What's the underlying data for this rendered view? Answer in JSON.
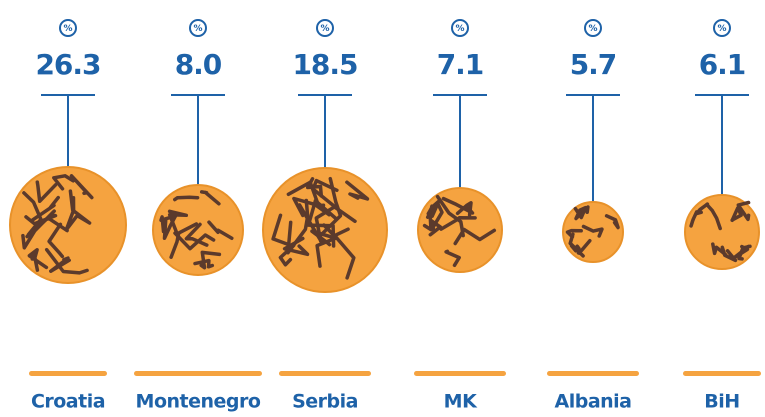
{
  "chart_data": {
    "type": "pictogram",
    "unit": "%",
    "categories": [
      "Croatia",
      "Montenegro",
      "Serbia",
      "MK",
      "Albania",
      "BiH"
    ],
    "values": [
      26.3,
      8.0,
      18.5,
      7.1,
      5.7,
      6.1
    ],
    "value_labels": [
      "26.3",
      "8.0",
      "18.5",
      "7.1",
      "5.7",
      "6.1"
    ],
    "color": "#1e62a8",
    "marker_color": "#f5a340"
  }
}
